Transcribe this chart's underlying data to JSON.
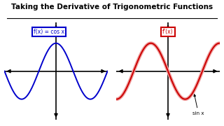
{
  "title": "Taking the Derivative of Trigonometric Functions",
  "title_fontsize": 7.5,
  "left_label": "f(x) = cos x",
  "right_label": "f’(x)",
  "annotation": "sin x",
  "bg_color": "#ffffff",
  "cos_color": "#0000cc",
  "sin_color": "#cc0000",
  "sin_faded_color": "#f0a0a0",
  "arrow_color": "#000000",
  "box_left_color": "#0000cc",
  "box_right_color": "#cc0000",
  "wave_amplitude": 0.75,
  "wave_freq": 1.5,
  "xlim": 11,
  "ylim": 1.3
}
